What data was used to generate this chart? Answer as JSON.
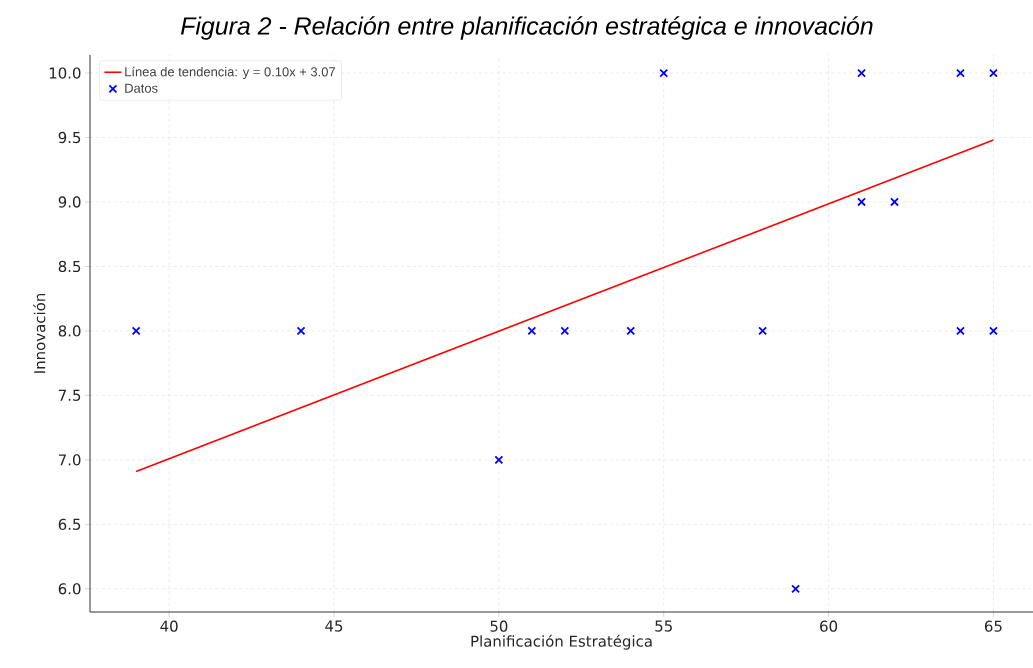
{
  "chart_data": {
    "type": "scatter",
    "title": "Figura  2 - Relación entre planificación estratégica e innovación",
    "xlabel": "Planificación Estratégica",
    "ylabel": "Innovación",
    "xlim": [
      37.6,
      66.2
    ],
    "ylim": [
      5.82,
      10.14
    ],
    "xticks": [
      40,
      45,
      50,
      55,
      60,
      65
    ],
    "yticks": [
      {
        "value": 6,
        "label": "6.0"
      },
      {
        "value": 6.5,
        "label": "6.5"
      },
      {
        "value": 7,
        "label": "7.0"
      },
      {
        "value": 7.5,
        "label": "7.5"
      },
      {
        "value": 8,
        "label": "8.0"
      },
      {
        "value": 8.5,
        "label": "8.5"
      },
      {
        "value": 9,
        "label": "9.0"
      },
      {
        "value": 9.5,
        "label": "9.5"
      },
      {
        "value": 10,
        "label": "10.0"
      }
    ],
    "grid": true,
    "legend": "top left",
    "series": [
      {
        "type": "line",
        "name": "Línea de tendencia: y = 0.10x + 3.07",
        "color": "#ff0000",
        "marker": "none",
        "x": [
          39,
          65
        ],
        "values": [
          6.91,
          9.48
        ]
      },
      {
        "name": "Datos",
        "color": "#0000ff",
        "marker": "cross",
        "x": [
          39,
          44,
          50,
          51,
          52,
          54,
          55,
          58,
          59,
          61,
          61,
          62,
          64,
          64,
          65,
          65
        ],
        "values": [
          8,
          8,
          7,
          8,
          8,
          8,
          10,
          8,
          6,
          10,
          9,
          9,
          10,
          8,
          10,
          8
        ]
      }
    ]
  }
}
